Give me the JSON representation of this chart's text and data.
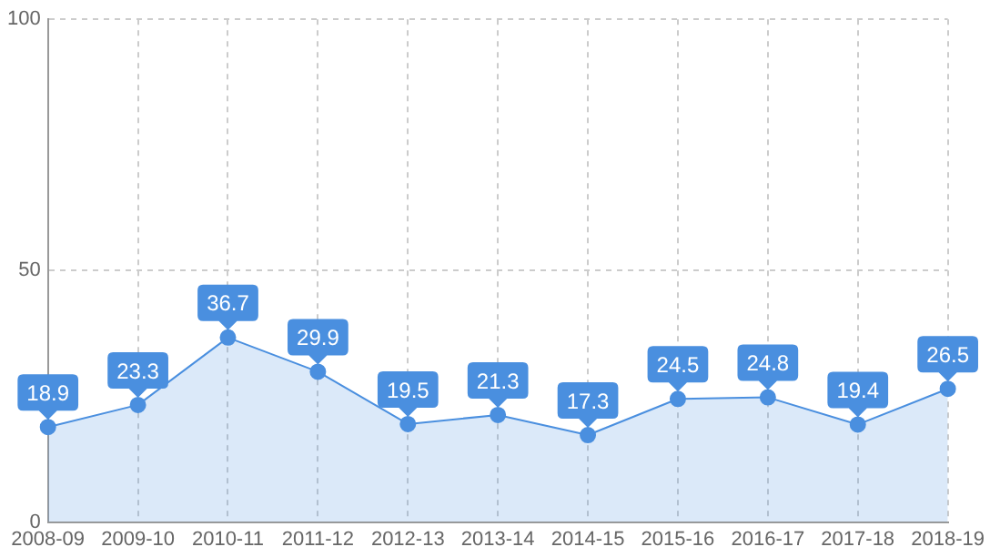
{
  "chart_data": {
    "type": "area",
    "categories": [
      "2008-09",
      "2009-10",
      "2010-11",
      "2011-12",
      "2012-13",
      "2013-14",
      "2014-15",
      "2015-16",
      "2016-17",
      "2017-18",
      "2018-19"
    ],
    "series": [
      {
        "color": "#4a8fdf",
        "values": [
          18.9,
          23.3,
          36.7,
          29.9,
          19.5,
          21.3,
          17.3,
          24.5,
          24.8,
          19.4,
          26.5
        ]
      }
    ],
    "ylim": [
      0,
      100
    ],
    "yticks": [
      0,
      50,
      100
    ],
    "grid": true,
    "marker": "circle",
    "data_labels": true
  }
}
